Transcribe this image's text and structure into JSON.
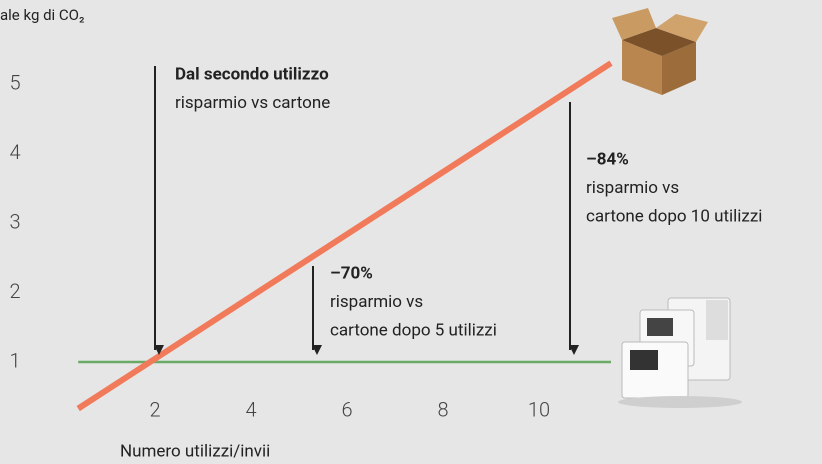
{
  "chart_data": {
    "type": "line",
    "y_axis_label": "ale kg di CO₂",
    "x_axis_label": "Numero utilizzi/invii",
    "xlim": [
      0,
      12
    ],
    "ylim": [
      0,
      6
    ],
    "xticks": [
      2,
      4,
      6,
      8,
      10
    ],
    "yticks": [
      1,
      2,
      3,
      4,
      5
    ],
    "series": [
      {
        "color": "#f07a5a",
        "x": [
          0.4,
          11.5
        ],
        "values": [
          0.33,
          5.3
        ]
      },
      {
        "color": "#6aaa64",
        "x": [
          0.4,
          11.5
        ],
        "values": [
          1,
          1
        ]
      }
    ],
    "annotations": [
      {
        "lines": [
          "Dal secondo utilizzo",
          "risparmio vs cartone"
        ]
      },
      {
        "lines": [
          "–70%",
          "risparmio vs",
          "cartone dopo 5 utilizzi"
        ]
      },
      {
        "lines": [
          "–84%",
          "risparmio vs",
          "cartone dopo 10 utilizzi"
        ]
      }
    ]
  }
}
